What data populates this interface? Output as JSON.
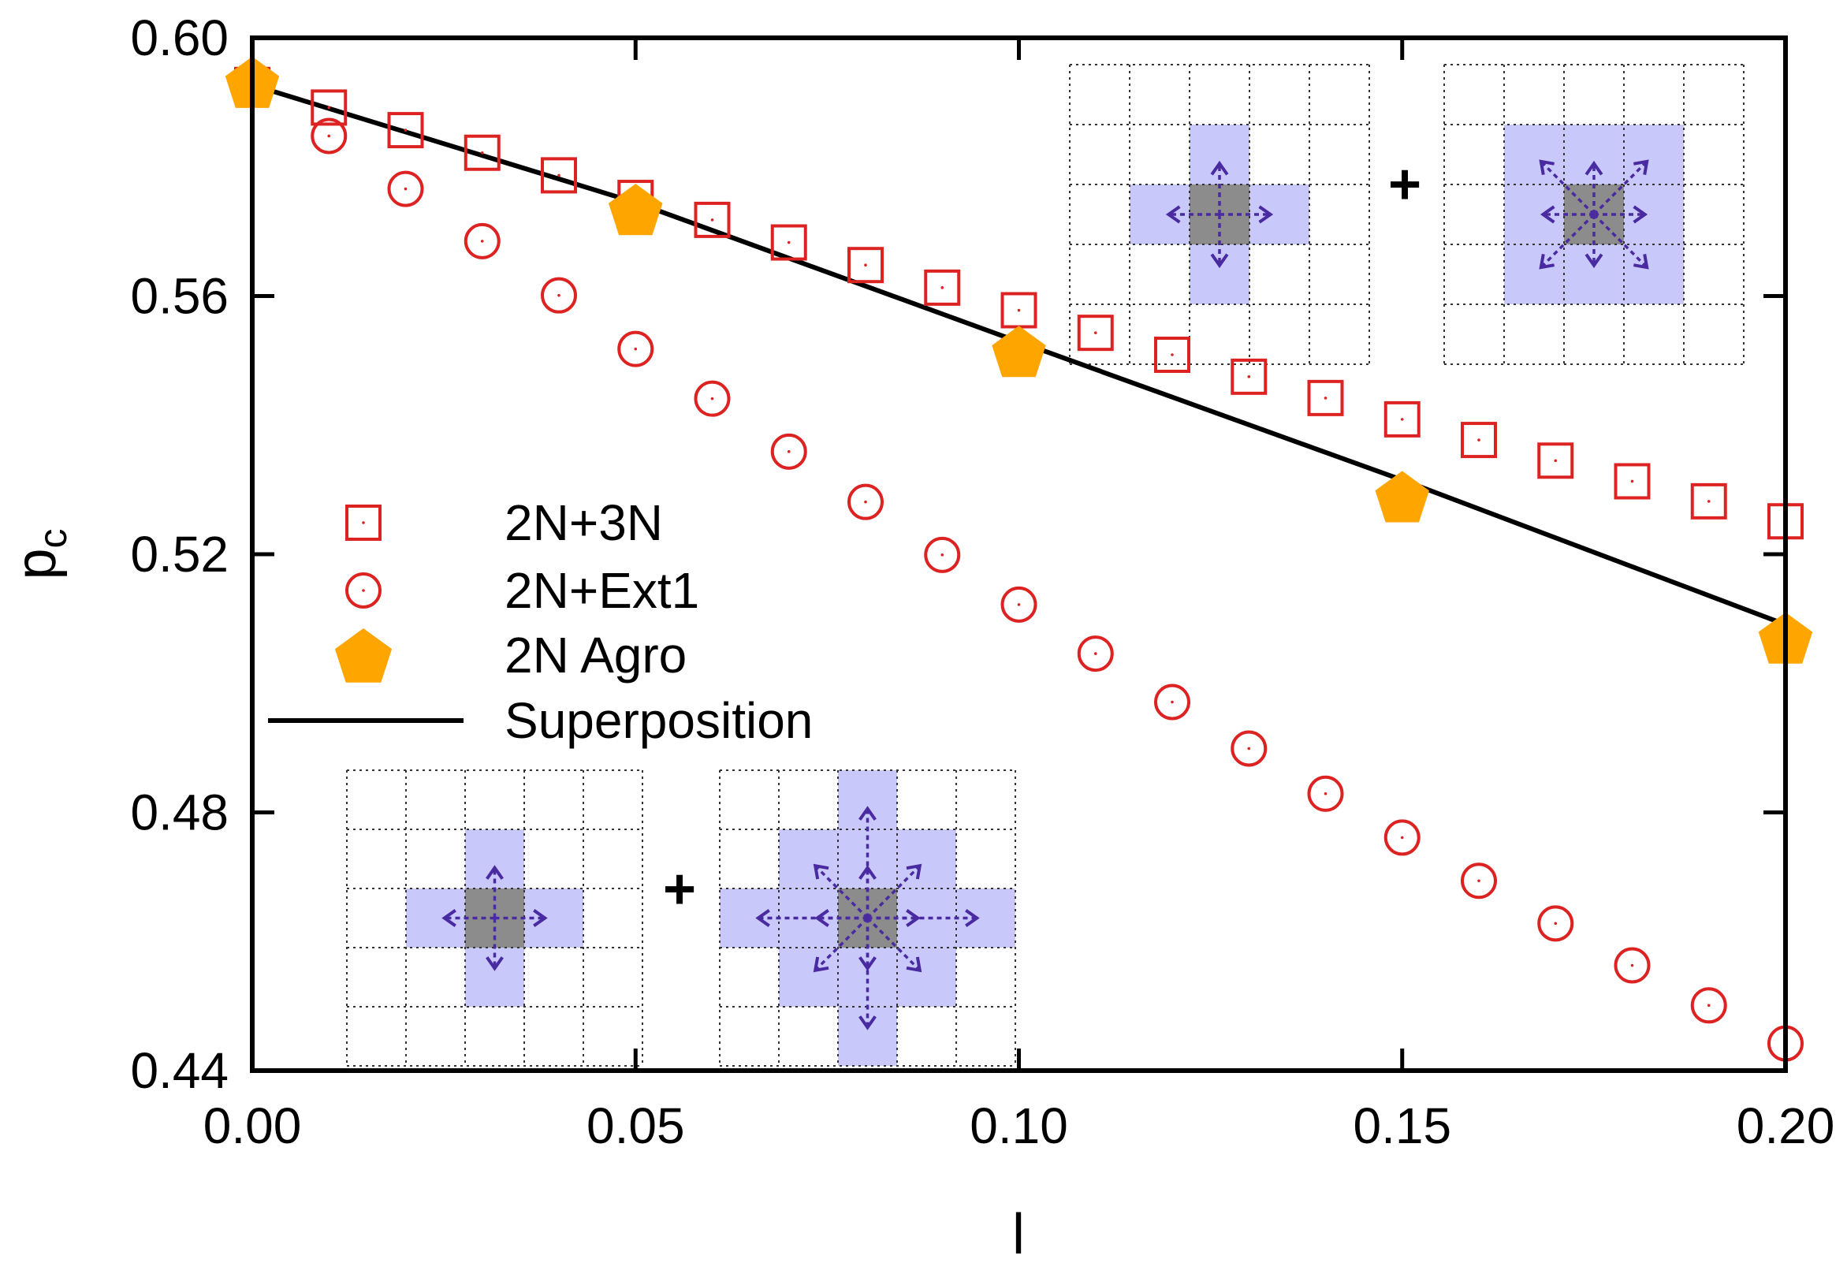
{
  "chart_data": {
    "type": "scatter",
    "title": "",
    "xlabel": "l",
    "ylabel": "p",
    "ylabel_subscript": "c",
    "xlim": [
      0.0,
      0.2
    ],
    "ylim": [
      0.44,
      0.6
    ],
    "x_ticks": [
      "0.00",
      "0.05",
      "0.10",
      "0.15",
      "0.20"
    ],
    "y_ticks": [
      "0.44",
      "0.48",
      "0.52",
      "0.56",
      "0.60"
    ],
    "x_tick_values": [
      0.0,
      0.05,
      0.1,
      0.15,
      0.2
    ],
    "y_tick_values": [
      0.44,
      0.48,
      0.52,
      0.56,
      0.6
    ],
    "legend_position": "center-left",
    "series": [
      {
        "name": "2N+3N",
        "marker": "open-square",
        "color": "#dd2222",
        "x": [
          0.0,
          0.01,
          0.02,
          0.03,
          0.04,
          0.05,
          0.06,
          0.07,
          0.08,
          0.09,
          0.1,
          0.11,
          0.12,
          0.13,
          0.14,
          0.15,
          0.16,
          0.17,
          0.18,
          0.19,
          0.2
        ],
        "y": [
          0.5927,
          0.5892,
          0.5857,
          0.5822,
          0.5787,
          0.5752,
          0.5718,
          0.5683,
          0.5648,
          0.5613,
          0.5578,
          0.5543,
          0.5509,
          0.5475,
          0.5442,
          0.5409,
          0.5377,
          0.5345,
          0.5313,
          0.5282,
          0.5251
        ]
      },
      {
        "name": "2N+Ext1",
        "marker": "open-circle",
        "color": "#dd2222",
        "x": [
          0.0,
          0.01,
          0.02,
          0.03,
          0.04,
          0.05,
          0.06,
          0.07,
          0.08,
          0.09,
          0.1,
          0.11,
          0.12,
          0.13,
          0.14,
          0.15,
          0.16,
          0.17,
          0.18,
          0.19,
          0.2
        ],
        "y": [
          0.5927,
          0.5848,
          0.5766,
          0.5685,
          0.5601,
          0.5518,
          0.5441,
          0.5359,
          0.5281,
          0.5199,
          0.5122,
          0.5046,
          0.4971,
          0.4899,
          0.4829,
          0.4761,
          0.4694,
          0.4628,
          0.4563,
          0.4501,
          0.4442
        ]
      },
      {
        "name": "2N Agro",
        "marker": "filled-pentagon",
        "color": "#ffa500",
        "x": [
          0.0,
          0.05,
          0.1,
          0.15,
          0.2
        ],
        "y": [
          0.5927,
          0.573,
          0.551,
          0.5285,
          0.5066
        ]
      },
      {
        "name": "Superposition",
        "marker": "line",
        "color": "#000000",
        "x": [
          0.0,
          0.05,
          0.1,
          0.15,
          0.2
        ],
        "y": [
          0.5927,
          0.5745,
          0.5529,
          0.5315,
          0.5091
        ]
      }
    ],
    "annotations": [
      "top inset: 2N neighbourhood + 3N neighbourhood",
      "bottom inset: 2N neighbourhood + Ext1 neighbourhood"
    ]
  },
  "insets": {
    "plus_symbol": "+"
  }
}
